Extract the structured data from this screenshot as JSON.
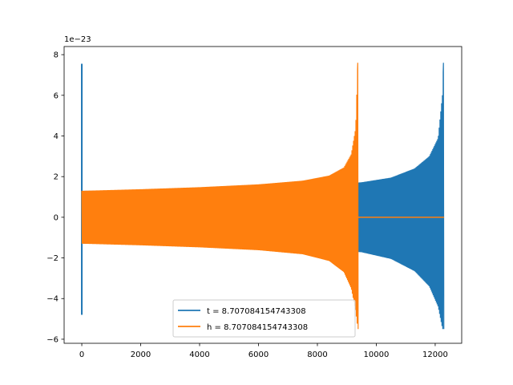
{
  "chart_data": {
    "type": "line",
    "title": "",
    "xlabel": "",
    "ylabel": "",
    "offset_text": "1e−23",
    "xlim": [
      -600,
      12900
    ],
    "ylim": [
      -6.2,
      8.4
    ],
    "x_ticks": [
      0,
      2000,
      4000,
      6000,
      8000,
      10000,
      12000
    ],
    "x_tick_labels": [
      "0",
      "2000",
      "4000",
      "6000",
      "8000",
      "10000",
      "12000"
    ],
    "y_ticks": [
      -6,
      -4,
      -2,
      0,
      2,
      4,
      6,
      8
    ],
    "y_tick_labels": [
      "−6",
      "−4",
      "−2",
      "0",
      "2",
      "4",
      "6",
      "8"
    ],
    "grid": false,
    "legend_position": "lower center",
    "series": [
      {
        "name": "t = 8.707084154743308",
        "color": "#1f77b4",
        "style": "oscillating",
        "spike_start": {
          "x": 0,
          "max": 7.55,
          "min": -4.8
        },
        "x_start": 0,
        "x_end": 12300,
        "envelope": [
          {
            "x": 50,
            "upper": 1.3,
            "lower": -1.3
          },
          {
            "x": 2000,
            "upper": 1.33,
            "lower": -1.33
          },
          {
            "x": 4000,
            "upper": 1.38,
            "lower": -1.38
          },
          {
            "x": 6000,
            "upper": 1.46,
            "lower": -1.46
          },
          {
            "x": 8000,
            "upper": 1.58,
            "lower": -1.58
          },
          {
            "x": 9500,
            "upper": 1.72,
            "lower": -1.72
          },
          {
            "x": 10500,
            "upper": 1.95,
            "lower": -2.05
          },
          {
            "x": 11300,
            "upper": 2.4,
            "lower": -2.65
          },
          {
            "x": 11800,
            "upper": 3.0,
            "lower": -3.4
          },
          {
            "x": 12100,
            "upper": 3.9,
            "lower": -4.4
          },
          {
            "x": 12250,
            "upper": 6.1,
            "lower": -5.5
          },
          {
            "x": 12280,
            "upper": 7.6,
            "lower": -5.5
          }
        ],
        "flat_after": 12280
      },
      {
        "name": "h = 8.707084154743308",
        "color": "#ff7f0e",
        "style": "oscillating",
        "x_start": 0,
        "x_end": 12300,
        "envelope": [
          {
            "x": 0,
            "upper": 1.3,
            "lower": -1.3
          },
          {
            "x": 2000,
            "upper": 1.38,
            "lower": -1.38
          },
          {
            "x": 4000,
            "upper": 1.48,
            "lower": -1.48
          },
          {
            "x": 6000,
            "upper": 1.62,
            "lower": -1.62
          },
          {
            "x": 7500,
            "upper": 1.8,
            "lower": -1.82
          },
          {
            "x": 8400,
            "upper": 2.05,
            "lower": -2.15
          },
          {
            "x": 8900,
            "upper": 2.45,
            "lower": -2.7
          },
          {
            "x": 9150,
            "upper": 3.1,
            "lower": -3.5
          },
          {
            "x": 9300,
            "upper": 4.4,
            "lower": -4.6
          },
          {
            "x": 9370,
            "upper": 7.6,
            "lower": -5.5
          }
        ],
        "flat_after": 9390
      }
    ]
  }
}
